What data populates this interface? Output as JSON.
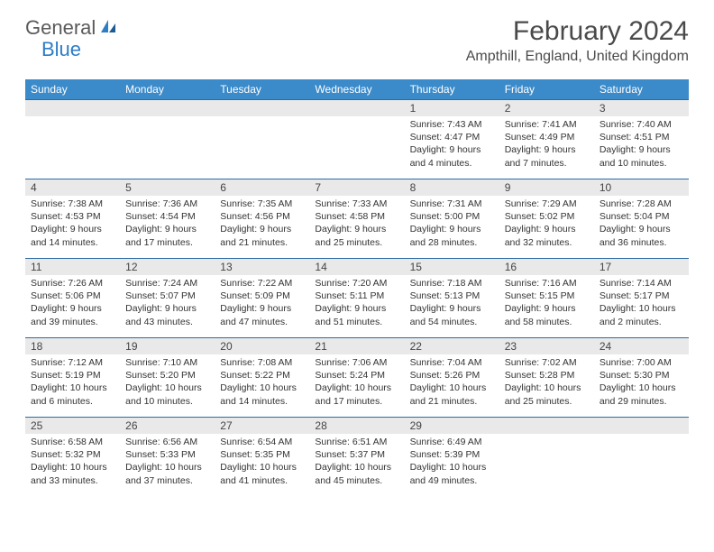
{
  "logo": {
    "word1": "General",
    "word2": "Blue"
  },
  "title": "February 2024",
  "location": "Ampthill, England, United Kingdom",
  "colors": {
    "header_bg": "#3b8ac9",
    "header_text": "#ffffff",
    "row_divider": "#2d6aa3",
    "daynum_bg": "#e9e9e9",
    "logo_gray": "#5a5a5a",
    "logo_blue": "#2d7dc6"
  },
  "day_headers": [
    "Sunday",
    "Monday",
    "Tuesday",
    "Wednesday",
    "Thursday",
    "Friday",
    "Saturday"
  ],
  "weeks": [
    [
      null,
      null,
      null,
      null,
      {
        "n": "1",
        "sunrise": "Sunrise: 7:43 AM",
        "sunset": "Sunset: 4:47 PM",
        "daylight": "Daylight: 9 hours and 4 minutes."
      },
      {
        "n": "2",
        "sunrise": "Sunrise: 7:41 AM",
        "sunset": "Sunset: 4:49 PM",
        "daylight": "Daylight: 9 hours and 7 minutes."
      },
      {
        "n": "3",
        "sunrise": "Sunrise: 7:40 AM",
        "sunset": "Sunset: 4:51 PM",
        "daylight": "Daylight: 9 hours and 10 minutes."
      }
    ],
    [
      {
        "n": "4",
        "sunrise": "Sunrise: 7:38 AM",
        "sunset": "Sunset: 4:53 PM",
        "daylight": "Daylight: 9 hours and 14 minutes."
      },
      {
        "n": "5",
        "sunrise": "Sunrise: 7:36 AM",
        "sunset": "Sunset: 4:54 PM",
        "daylight": "Daylight: 9 hours and 17 minutes."
      },
      {
        "n": "6",
        "sunrise": "Sunrise: 7:35 AM",
        "sunset": "Sunset: 4:56 PM",
        "daylight": "Daylight: 9 hours and 21 minutes."
      },
      {
        "n": "7",
        "sunrise": "Sunrise: 7:33 AM",
        "sunset": "Sunset: 4:58 PM",
        "daylight": "Daylight: 9 hours and 25 minutes."
      },
      {
        "n": "8",
        "sunrise": "Sunrise: 7:31 AM",
        "sunset": "Sunset: 5:00 PM",
        "daylight": "Daylight: 9 hours and 28 minutes."
      },
      {
        "n": "9",
        "sunrise": "Sunrise: 7:29 AM",
        "sunset": "Sunset: 5:02 PM",
        "daylight": "Daylight: 9 hours and 32 minutes."
      },
      {
        "n": "10",
        "sunrise": "Sunrise: 7:28 AM",
        "sunset": "Sunset: 5:04 PM",
        "daylight": "Daylight: 9 hours and 36 minutes."
      }
    ],
    [
      {
        "n": "11",
        "sunrise": "Sunrise: 7:26 AM",
        "sunset": "Sunset: 5:06 PM",
        "daylight": "Daylight: 9 hours and 39 minutes."
      },
      {
        "n": "12",
        "sunrise": "Sunrise: 7:24 AM",
        "sunset": "Sunset: 5:07 PM",
        "daylight": "Daylight: 9 hours and 43 minutes."
      },
      {
        "n": "13",
        "sunrise": "Sunrise: 7:22 AM",
        "sunset": "Sunset: 5:09 PM",
        "daylight": "Daylight: 9 hours and 47 minutes."
      },
      {
        "n": "14",
        "sunrise": "Sunrise: 7:20 AM",
        "sunset": "Sunset: 5:11 PM",
        "daylight": "Daylight: 9 hours and 51 minutes."
      },
      {
        "n": "15",
        "sunrise": "Sunrise: 7:18 AM",
        "sunset": "Sunset: 5:13 PM",
        "daylight": "Daylight: 9 hours and 54 minutes."
      },
      {
        "n": "16",
        "sunrise": "Sunrise: 7:16 AM",
        "sunset": "Sunset: 5:15 PM",
        "daylight": "Daylight: 9 hours and 58 minutes."
      },
      {
        "n": "17",
        "sunrise": "Sunrise: 7:14 AM",
        "sunset": "Sunset: 5:17 PM",
        "daylight": "Daylight: 10 hours and 2 minutes."
      }
    ],
    [
      {
        "n": "18",
        "sunrise": "Sunrise: 7:12 AM",
        "sunset": "Sunset: 5:19 PM",
        "daylight": "Daylight: 10 hours and 6 minutes."
      },
      {
        "n": "19",
        "sunrise": "Sunrise: 7:10 AM",
        "sunset": "Sunset: 5:20 PM",
        "daylight": "Daylight: 10 hours and 10 minutes."
      },
      {
        "n": "20",
        "sunrise": "Sunrise: 7:08 AM",
        "sunset": "Sunset: 5:22 PM",
        "daylight": "Daylight: 10 hours and 14 minutes."
      },
      {
        "n": "21",
        "sunrise": "Sunrise: 7:06 AM",
        "sunset": "Sunset: 5:24 PM",
        "daylight": "Daylight: 10 hours and 17 minutes."
      },
      {
        "n": "22",
        "sunrise": "Sunrise: 7:04 AM",
        "sunset": "Sunset: 5:26 PM",
        "daylight": "Daylight: 10 hours and 21 minutes."
      },
      {
        "n": "23",
        "sunrise": "Sunrise: 7:02 AM",
        "sunset": "Sunset: 5:28 PM",
        "daylight": "Daylight: 10 hours and 25 minutes."
      },
      {
        "n": "24",
        "sunrise": "Sunrise: 7:00 AM",
        "sunset": "Sunset: 5:30 PM",
        "daylight": "Daylight: 10 hours and 29 minutes."
      }
    ],
    [
      {
        "n": "25",
        "sunrise": "Sunrise: 6:58 AM",
        "sunset": "Sunset: 5:32 PM",
        "daylight": "Daylight: 10 hours and 33 minutes."
      },
      {
        "n": "26",
        "sunrise": "Sunrise: 6:56 AM",
        "sunset": "Sunset: 5:33 PM",
        "daylight": "Daylight: 10 hours and 37 minutes."
      },
      {
        "n": "27",
        "sunrise": "Sunrise: 6:54 AM",
        "sunset": "Sunset: 5:35 PM",
        "daylight": "Daylight: 10 hours and 41 minutes."
      },
      {
        "n": "28",
        "sunrise": "Sunrise: 6:51 AM",
        "sunset": "Sunset: 5:37 PM",
        "daylight": "Daylight: 10 hours and 45 minutes."
      },
      {
        "n": "29",
        "sunrise": "Sunrise: 6:49 AM",
        "sunset": "Sunset: 5:39 PM",
        "daylight": "Daylight: 10 hours and 49 minutes."
      },
      null,
      null
    ]
  ]
}
